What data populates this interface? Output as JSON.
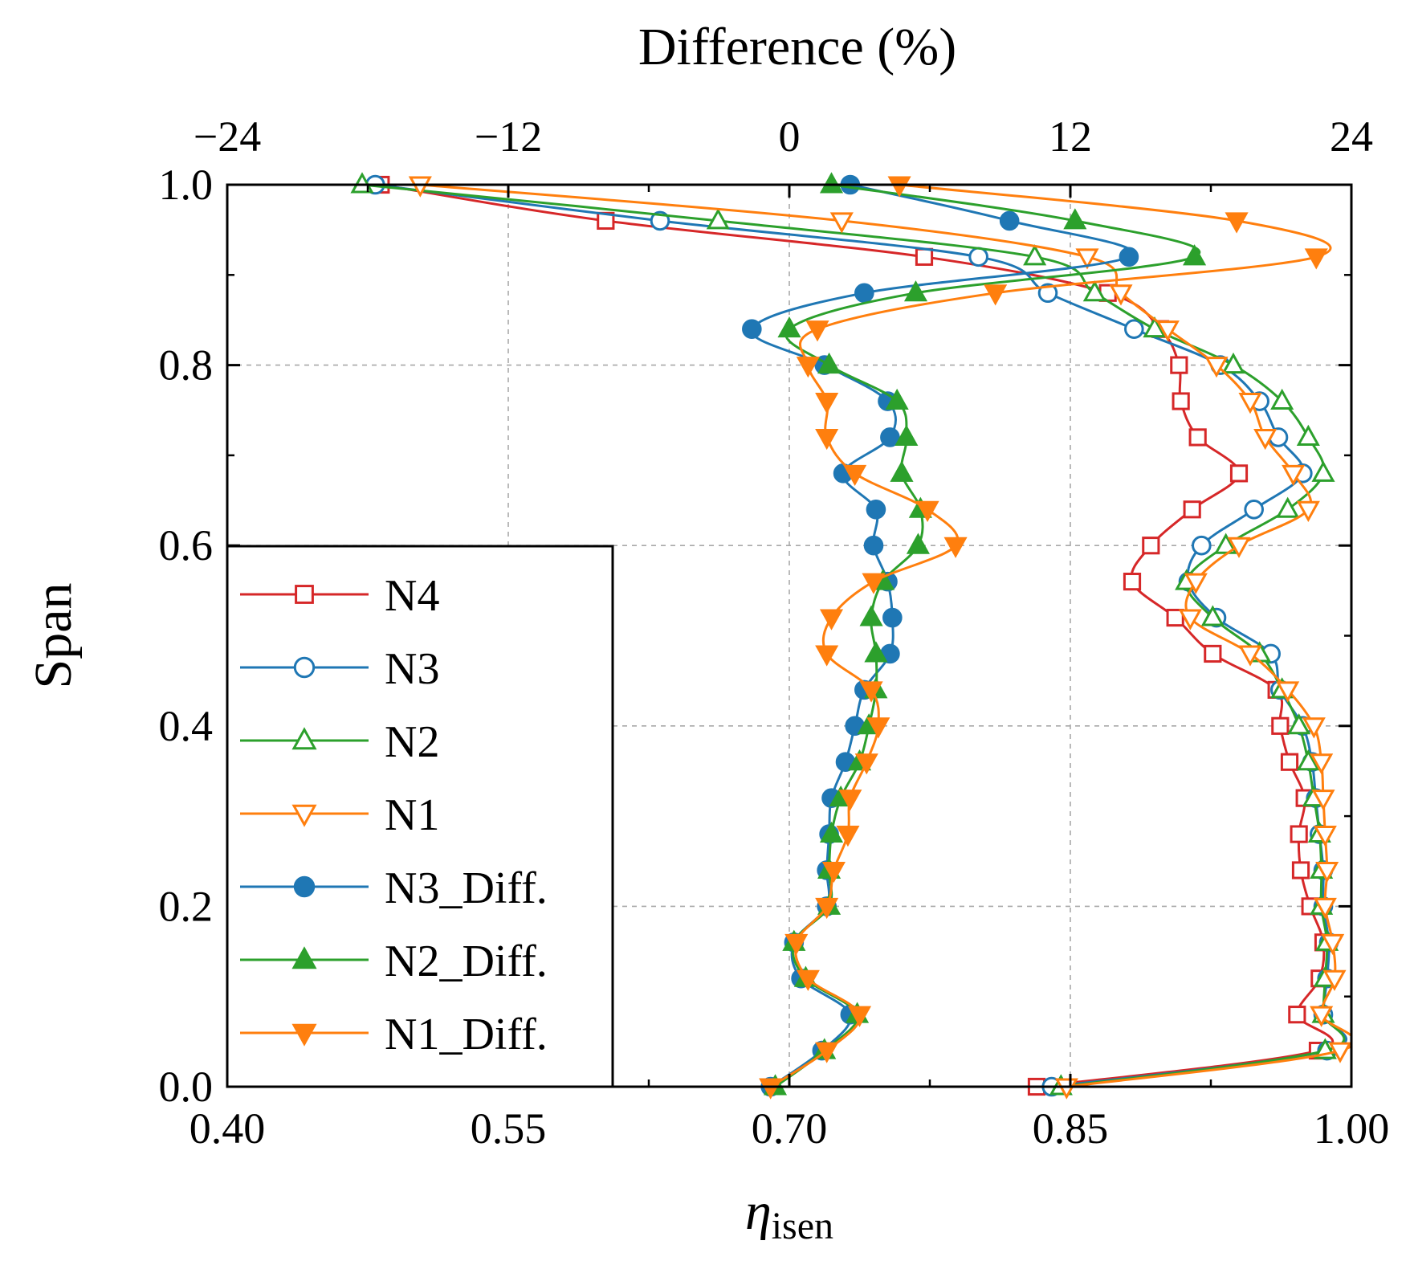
{
  "chart_data": {
    "type": "line",
    "orientation": "horizontal-profile",
    "xlabel": "η",
    "xlabel_subscript": "isen",
    "ylabel": "Span",
    "x2label": "Difference (%)",
    "xlim": [
      0.4,
      1.0
    ],
    "ylim": [
      0.0,
      1.0
    ],
    "x2lim": [
      -24,
      24
    ],
    "xticks": [
      "0.40",
      "0.55",
      "0.70",
      "0.85",
      "1.00"
    ],
    "yticks": [
      "0.0",
      "0.2",
      "0.4",
      "0.6",
      "0.8",
      "1.0"
    ],
    "x2ticks": [
      "−24",
      "−12",
      "0",
      "12",
      "24"
    ],
    "grid": true,
    "legend_position": "lower-left",
    "series": [
      {
        "name": "N4",
        "axis": "bottom",
        "color": "#d62728",
        "marker": "square",
        "filled": false,
        "points": [
          [
            0.832,
            0.0
          ],
          [
            0.982,
            0.04
          ],
          [
            0.971,
            0.08
          ],
          [
            0.983,
            0.12
          ],
          [
            0.985,
            0.16
          ],
          [
            0.978,
            0.2
          ],
          [
            0.973,
            0.24
          ],
          [
            0.972,
            0.28
          ],
          [
            0.975,
            0.32
          ],
          [
            0.967,
            0.36
          ],
          [
            0.962,
            0.4
          ],
          [
            0.96,
            0.44
          ],
          [
            0.926,
            0.48
          ],
          [
            0.906,
            0.52
          ],
          [
            0.883,
            0.56
          ],
          [
            0.893,
            0.6
          ],
          [
            0.915,
            0.64
          ],
          [
            0.94,
            0.68
          ],
          [
            0.918,
            0.72
          ],
          [
            0.909,
            0.76
          ],
          [
            0.908,
            0.8
          ],
          [
            0.898,
            0.84
          ],
          [
            0.87,
            0.88
          ],
          [
            0.772,
            0.92
          ],
          [
            0.602,
            0.96
          ],
          [
            0.482,
            1.0
          ]
        ]
      },
      {
        "name": "N3",
        "axis": "bottom",
        "color": "#1f77b4",
        "marker": "circle",
        "filled": false,
        "points": [
          [
            0.84,
            0.0
          ],
          [
            0.987,
            0.04
          ],
          [
            0.985,
            0.08
          ],
          [
            0.987,
            0.12
          ],
          [
            0.988,
            0.16
          ],
          [
            0.985,
            0.2
          ],
          [
            0.985,
            0.24
          ],
          [
            0.983,
            0.28
          ],
          [
            0.981,
            0.32
          ],
          [
            0.979,
            0.36
          ],
          [
            0.974,
            0.4
          ],
          [
            0.962,
            0.44
          ],
          [
            0.957,
            0.48
          ],
          [
            0.928,
            0.52
          ],
          [
            0.913,
            0.56
          ],
          [
            0.92,
            0.6
          ],
          [
            0.948,
            0.64
          ],
          [
            0.974,
            0.68
          ],
          [
            0.961,
            0.72
          ],
          [
            0.951,
            0.76
          ],
          [
            0.93,
            0.8
          ],
          [
            0.884,
            0.84
          ],
          [
            0.838,
            0.88
          ],
          [
            0.801,
            0.92
          ],
          [
            0.631,
            0.96
          ],
          [
            0.479,
            1.0
          ]
        ]
      },
      {
        "name": "N2",
        "axis": "bottom",
        "color": "#2ca02c",
        "marker": "triangle-up",
        "filled": false,
        "points": [
          [
            0.845,
            0.0
          ],
          [
            0.986,
            0.04
          ],
          [
            0.985,
            0.08
          ],
          [
            0.986,
            0.12
          ],
          [
            0.987,
            0.16
          ],
          [
            0.984,
            0.2
          ],
          [
            0.984,
            0.24
          ],
          [
            0.983,
            0.28
          ],
          [
            0.98,
            0.32
          ],
          [
            0.977,
            0.36
          ],
          [
            0.972,
            0.4
          ],
          [
            0.963,
            0.44
          ],
          [
            0.951,
            0.48
          ],
          [
            0.926,
            0.52
          ],
          [
            0.912,
            0.56
          ],
          [
            0.933,
            0.6
          ],
          [
            0.966,
            0.64
          ],
          [
            0.985,
            0.68
          ],
          [
            0.977,
            0.72
          ],
          [
            0.963,
            0.76
          ],
          [
            0.937,
            0.8
          ],
          [
            0.895,
            0.84
          ],
          [
            0.863,
            0.88
          ],
          [
            0.831,
            0.92
          ],
          [
            0.662,
            0.96
          ],
          [
            0.472,
            1.0
          ]
        ]
      },
      {
        "name": "N1",
        "axis": "bottom",
        "color": "#ff7f0e",
        "marker": "triangle-down",
        "filled": false,
        "points": [
          [
            0.848,
            0.0
          ],
          [
            0.994,
            0.04
          ],
          [
            0.984,
            0.08
          ],
          [
            0.991,
            0.12
          ],
          [
            0.99,
            0.16
          ],
          [
            0.986,
            0.2
          ],
          [
            0.987,
            0.24
          ],
          [
            0.986,
            0.28
          ],
          [
            0.985,
            0.32
          ],
          [
            0.984,
            0.36
          ],
          [
            0.98,
            0.4
          ],
          [
            0.966,
            0.44
          ],
          [
            0.946,
            0.48
          ],
          [
            0.914,
            0.52
          ],
          [
            0.917,
            0.56
          ],
          [
            0.94,
            0.6
          ],
          [
            0.977,
            0.64
          ],
          [
            0.969,
            0.68
          ],
          [
            0.954,
            0.72
          ],
          [
            0.946,
            0.76
          ],
          [
            0.928,
            0.8
          ],
          [
            0.902,
            0.84
          ],
          [
            0.877,
            0.88
          ],
          [
            0.859,
            0.92
          ],
          [
            0.728,
            0.96
          ],
          [
            0.503,
            1.0
          ]
        ]
      },
      {
        "name": "N3_Diff.",
        "axis": "top",
        "color": "#1f77b4",
        "marker": "circle",
        "filled": true,
        "points": [
          [
            -0.8,
            0.0
          ],
          [
            1.4,
            0.04
          ],
          [
            2.6,
            0.08
          ],
          [
            0.5,
            0.12
          ],
          [
            0.2,
            0.16
          ],
          [
            1.6,
            0.2
          ],
          [
            1.6,
            0.24
          ],
          [
            1.7,
            0.28
          ],
          [
            1.8,
            0.32
          ],
          [
            2.4,
            0.36
          ],
          [
            2.8,
            0.4
          ],
          [
            3.2,
            0.44
          ],
          [
            4.3,
            0.48
          ],
          [
            4.4,
            0.52
          ],
          [
            4.2,
            0.56
          ],
          [
            3.6,
            0.6
          ],
          [
            3.7,
            0.64
          ],
          [
            2.3,
            0.68
          ],
          [
            4.3,
            0.72
          ],
          [
            4.2,
            0.76
          ],
          [
            1.5,
            0.8
          ],
          [
            -1.6,
            0.84
          ],
          [
            3.2,
            0.88
          ],
          [
            14.5,
            0.92
          ],
          [
            9.4,
            0.96
          ],
          [
            2.6,
            1.0
          ]
        ]
      },
      {
        "name": "N2_Diff.",
        "axis": "top",
        "color": "#2ca02c",
        "marker": "triangle-up",
        "filled": true,
        "points": [
          [
            -0.6,
            0.0
          ],
          [
            1.5,
            0.04
          ],
          [
            2.9,
            0.08
          ],
          [
            0.7,
            0.12
          ],
          [
            0.2,
            0.16
          ],
          [
            1.7,
            0.2
          ],
          [
            1.7,
            0.24
          ],
          [
            1.8,
            0.28
          ],
          [
            2.2,
            0.32
          ],
          [
            3.0,
            0.36
          ],
          [
            3.4,
            0.4
          ],
          [
            3.7,
            0.44
          ],
          [
            3.7,
            0.48
          ],
          [
            3.5,
            0.52
          ],
          [
            4.0,
            0.56
          ],
          [
            5.5,
            0.6
          ],
          [
            5.6,
            0.64
          ],
          [
            4.8,
            0.68
          ],
          [
            5.0,
            0.72
          ],
          [
            4.6,
            0.76
          ],
          [
            1.7,
            0.8
          ],
          [
            0.0,
            0.84
          ],
          [
            5.4,
            0.88
          ],
          [
            17.3,
            0.92
          ],
          [
            12.2,
            0.96
          ],
          [
            1.8,
            1.0
          ]
        ]
      },
      {
        "name": "N1_Diff.",
        "axis": "top",
        "color": "#ff7f0e",
        "marker": "triangle-down",
        "filled": true,
        "points": [
          [
            -0.8,
            0.0
          ],
          [
            1.6,
            0.04
          ],
          [
            3.0,
            0.08
          ],
          [
            0.8,
            0.12
          ],
          [
            0.3,
            0.16
          ],
          [
            1.6,
            0.2
          ],
          [
            1.9,
            0.24
          ],
          [
            2.5,
            0.28
          ],
          [
            2.6,
            0.32
          ],
          [
            3.3,
            0.36
          ],
          [
            3.8,
            0.4
          ],
          [
            3.5,
            0.44
          ],
          [
            1.6,
            0.48
          ],
          [
            1.8,
            0.52
          ],
          [
            3.6,
            0.56
          ],
          [
            7.1,
            0.6
          ],
          [
            5.9,
            0.64
          ],
          [
            2.8,
            0.68
          ],
          [
            1.6,
            0.72
          ],
          [
            1.6,
            0.76
          ],
          [
            0.8,
            0.8
          ],
          [
            1.2,
            0.84
          ],
          [
            8.8,
            0.88
          ],
          [
            22.5,
            0.92
          ],
          [
            19.1,
            0.96
          ],
          [
            4.7,
            1.0
          ]
        ]
      }
    ]
  }
}
